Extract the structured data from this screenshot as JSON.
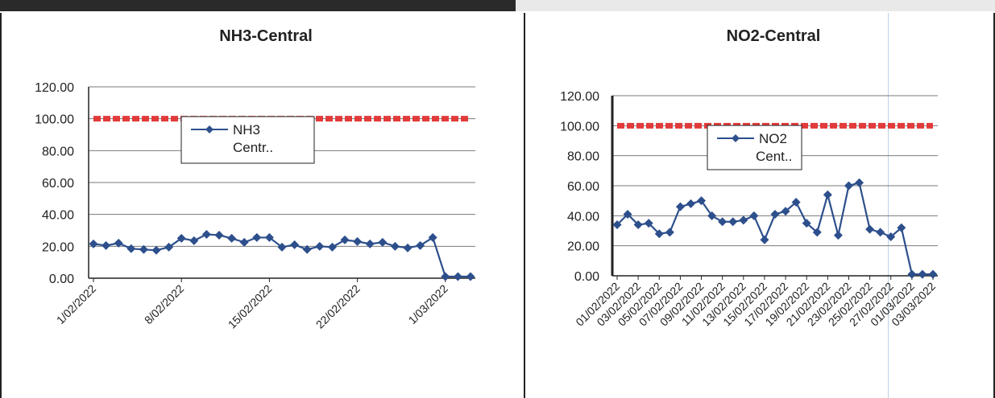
{
  "charts": [
    {
      "id": "nh3",
      "title": "NH3-Central",
      "legend": [
        "NH3",
        "Centr.."
      ],
      "tick_labels": [
        "1/02/2022",
        "8/02/2022",
        "15/02/2022",
        "22/02/2022",
        "1/03/2022"
      ],
      "y_tick_labels": [
        "120.00",
        "100.00",
        "80.00",
        "60.00",
        "40.00",
        "20.00",
        "0.00"
      ]
    },
    {
      "id": "no2",
      "title": "NO2-Central",
      "legend": [
        "NO2",
        "Cent.."
      ],
      "tick_labels": [
        "01/02/2022",
        "03/02/2022",
        "05/02/2022",
        "07/02/2022",
        "09/02/2022",
        "11/02/2022",
        "13/02/2022",
        "15/02/2022",
        "17/02/2022",
        "19/02/2022",
        "21/02/2022",
        "23/02/2022",
        "25/02/2022",
        "27/02/2022",
        "01/03/2022",
        "03/03/2022"
      ],
      "y_tick_labels": [
        "120.00",
        "100.00",
        "80.00",
        "60.00",
        "40.00",
        "20.00",
        "0.00"
      ]
    }
  ],
  "chart_data": [
    {
      "type": "line",
      "title": "NH3-Central",
      "xlabel": "",
      "ylabel": "",
      "ylim": [
        0,
        120
      ],
      "grid": true,
      "legend_position": "top-center",
      "x": [
        "1/02/2022",
        "2/02/2022",
        "3/02/2022",
        "4/02/2022",
        "5/02/2022",
        "6/02/2022",
        "7/02/2022",
        "8/02/2022",
        "9/02/2022",
        "10/02/2022",
        "11/02/2022",
        "12/02/2022",
        "13/02/2022",
        "14/02/2022",
        "15/02/2022",
        "16/02/2022",
        "17/02/2022",
        "18/02/2022",
        "19/02/2022",
        "20/02/2022",
        "21/02/2022",
        "22/02/2022",
        "23/02/2022",
        "24/02/2022",
        "25/02/2022",
        "26/02/2022",
        "27/02/2022",
        "28/02/2022",
        "1/03/2022",
        "2/03/2022",
        "3/03/2022"
      ],
      "series": [
        {
          "name": "NH3 Centr..",
          "color": "#2d4f8c",
          "values": [
            21.5,
            20.5,
            22,
            18.5,
            18,
            17.5,
            19.5,
            25,
            23.5,
            27.5,
            27,
            25,
            22.5,
            25.5,
            25.5,
            19.5,
            21,
            18,
            20,
            19.5,
            24,
            23,
            21.5,
            22.5,
            20,
            19,
            20.5,
            25.5,
            1,
            1,
            1
          ]
        },
        {
          "name": "",
          "color": "#e23a3a",
          "style": "dashed",
          "values": [
            100,
            100,
            100,
            100,
            100,
            100,
            100,
            100,
            100,
            100,
            100,
            100,
            100,
            100,
            100,
            100,
            100,
            100,
            100,
            100,
            100,
            100,
            100,
            100,
            100,
            100,
            100,
            100,
            100,
            100,
            100
          ]
        }
      ],
      "tick_every": 7
    },
    {
      "type": "line",
      "title": "NO2-Central",
      "xlabel": "",
      "ylabel": "",
      "ylim": [
        0,
        120
      ],
      "grid": true,
      "legend_position": "top-center",
      "x": [
        "01/02/2022",
        "02/02/2022",
        "03/02/2022",
        "04/02/2022",
        "05/02/2022",
        "06/02/2022",
        "07/02/2022",
        "08/02/2022",
        "09/02/2022",
        "10/02/2022",
        "11/02/2022",
        "12/02/2022",
        "13/02/2022",
        "14/02/2022",
        "15/02/2022",
        "16/02/2022",
        "17/02/2022",
        "18/02/2022",
        "19/02/2022",
        "20/02/2022",
        "21/02/2022",
        "22/02/2022",
        "23/02/2022",
        "24/02/2022",
        "25/02/2022",
        "26/02/2022",
        "27/02/2022",
        "28/02/2022",
        "01/03/2022",
        "02/03/2022",
        "03/03/2022"
      ],
      "series": [
        {
          "name": "NO2 Cent..",
          "color": "#2d4f8c",
          "values": [
            34,
            41,
            34,
            35,
            28,
            29,
            46,
            48,
            50,
            40,
            36,
            36,
            37,
            40,
            24,
            41,
            43,
            49,
            35,
            29,
            54,
            27,
            60,
            62,
            31,
            29,
            26,
            32,
            1,
            1,
            1
          ]
        },
        {
          "name": "",
          "color": "#e23a3a",
          "style": "dashed",
          "values": [
            100,
            100,
            100,
            100,
            100,
            100,
            100,
            100,
            100,
            100,
            100,
            100,
            100,
            100,
            100,
            100,
            100,
            100,
            100,
            100,
            100,
            100,
            100,
            100,
            100,
            100,
            100,
            100,
            100,
            100,
            100
          ]
        }
      ],
      "tick_every": 2
    }
  ]
}
